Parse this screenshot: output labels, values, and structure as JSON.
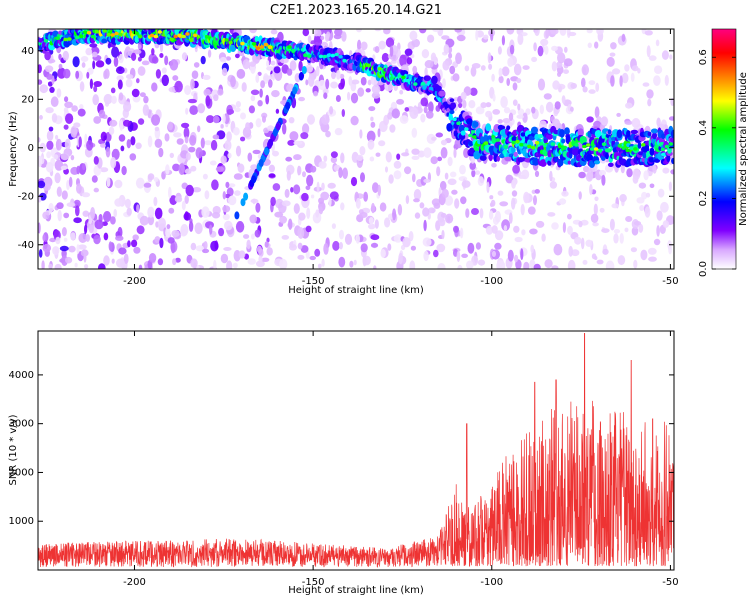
{
  "figure_title": "C2E1.2023.165.20.14.G21",
  "chart_data": [
    {
      "type": "heatmap",
      "xlabel": "Height of straight line (km)",
      "ylabel": "Frequency (Hz)",
      "xlim": [
        -227,
        -49
      ],
      "ylim": [
        -50,
        49
      ],
      "x_ticks": [
        -200,
        -150,
        -100,
        -50
      ],
      "y_ticks": [
        -40,
        -20,
        0,
        20,
        40
      ],
      "colorbar": {
        "label": "Normalized spectral amplitude",
        "range": [
          0.0,
          0.68
        ],
        "ticks": [
          0.0,
          0.2,
          0.4,
          0.6
        ],
        "colors": [
          "#ffffff",
          "#d9a8ff",
          "#8000ff",
          "#0000ff",
          "#00ffff",
          "#00ff00",
          "#ffff00",
          "#ff8000",
          "#ff0000",
          "#ff0080"
        ]
      },
      "ridge": {
        "description_points": [
          {
            "x": -226,
            "y": 43,
            "amp": 0.45
          },
          {
            "x": -215,
            "y": 47,
            "amp": 0.5
          },
          {
            "x": -200,
            "y": 47,
            "amp": 0.55
          },
          {
            "x": -185,
            "y": 46,
            "amp": 0.55
          },
          {
            "x": -175,
            "y": 44,
            "amp": 0.5
          },
          {
            "x": -165,
            "y": 42,
            "amp": 0.55
          },
          {
            "x": -150,
            "y": 39,
            "amp": 0.35
          },
          {
            "x": -140,
            "y": 36,
            "amp": 0.3
          },
          {
            "x": -132,
            "y": 32,
            "amp": 0.55
          },
          {
            "x": -124,
            "y": 28,
            "amp": 0.4
          },
          {
            "x": -116,
            "y": 25,
            "amp": 0.35
          },
          {
            "x": -112,
            "y": 14,
            "amp": 0.3
          },
          {
            "x": -105,
            "y": 3,
            "amp": 0.45
          },
          {
            "x": -90,
            "y": 1,
            "amp": 0.45
          },
          {
            "x": -75,
            "y": 0,
            "amp": 0.5
          },
          {
            "x": -60,
            "y": 0,
            "amp": 0.45
          },
          {
            "x": -50,
            "y": 1,
            "amp": 0.4
          }
        ]
      }
    },
    {
      "type": "line",
      "xlabel": "Height of straight line (km)",
      "ylabel": "SNR (10 * v/v)",
      "xlim": [
        -227,
        -49
      ],
      "ylim": [
        0,
        4900
      ],
      "x_ticks": [
        -200,
        -150,
        -100,
        -50
      ],
      "y_ticks": [
        1000,
        2000,
        3000,
        4000
      ],
      "color": "#ee3333",
      "envelope": [
        {
          "x": -227,
          "low": 60,
          "high": 550
        },
        {
          "x": -170,
          "low": 60,
          "high": 650
        },
        {
          "x": -130,
          "low": 60,
          "high": 450
        },
        {
          "x": -115,
          "low": 70,
          "high": 700
        },
        {
          "x": -110,
          "low": 80,
          "high": 1800
        },
        {
          "x": -105,
          "low": 80,
          "high": 1300
        },
        {
          "x": -95,
          "low": 80,
          "high": 2500
        },
        {
          "x": -85,
          "low": 80,
          "high": 3200
        },
        {
          "x": -75,
          "low": 80,
          "high": 3800
        },
        {
          "x": -65,
          "low": 80,
          "high": 3300
        },
        {
          "x": -55,
          "low": 80,
          "high": 3000
        },
        {
          "x": -49,
          "low": 80,
          "high": 3400
        }
      ],
      "peaks": [
        {
          "x": -107,
          "y": 3000
        },
        {
          "x": -88,
          "y": 3850
        },
        {
          "x": -82,
          "y": 3900
        },
        {
          "x": -74,
          "y": 4850
        },
        {
          "x": -61,
          "y": 4300
        },
        {
          "x": -55,
          "y": 3100
        }
      ]
    }
  ]
}
